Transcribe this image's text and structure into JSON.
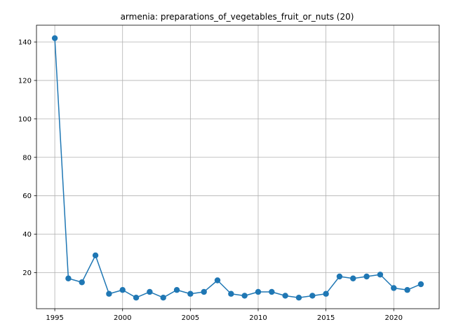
{
  "chart_data": {
    "type": "line",
    "title": "armenia: preparations_of_vegetables_fruit_or_nuts (20)",
    "xlabel": "",
    "ylabel": "",
    "x": [
      1995,
      1996,
      1997,
      1998,
      1999,
      2000,
      2001,
      2002,
      2003,
      2004,
      2005,
      2006,
      2007,
      2008,
      2009,
      2010,
      2011,
      2012,
      2013,
      2014,
      2015,
      2016,
      2017,
      2018,
      2019,
      2020,
      2021,
      2022
    ],
    "series": [
      {
        "values": [
          142,
          17,
          15,
          29,
          9,
          11,
          7,
          10,
          7,
          11,
          9,
          10,
          16,
          9,
          8,
          10,
          10,
          8,
          7,
          8,
          9,
          18,
          17,
          18,
          19,
          12,
          11,
          14
        ],
        "color": "#1f77b4"
      }
    ],
    "xlim": [
      1993.65,
      2023.35
    ],
    "ylim": [
      1.25,
      148.75
    ],
    "x_ticks": [
      1995,
      2000,
      2005,
      2010,
      2015,
      2020
    ],
    "y_ticks": [
      20,
      40,
      60,
      80,
      100,
      120,
      140
    ],
    "grid": true,
    "legend": "none"
  }
}
